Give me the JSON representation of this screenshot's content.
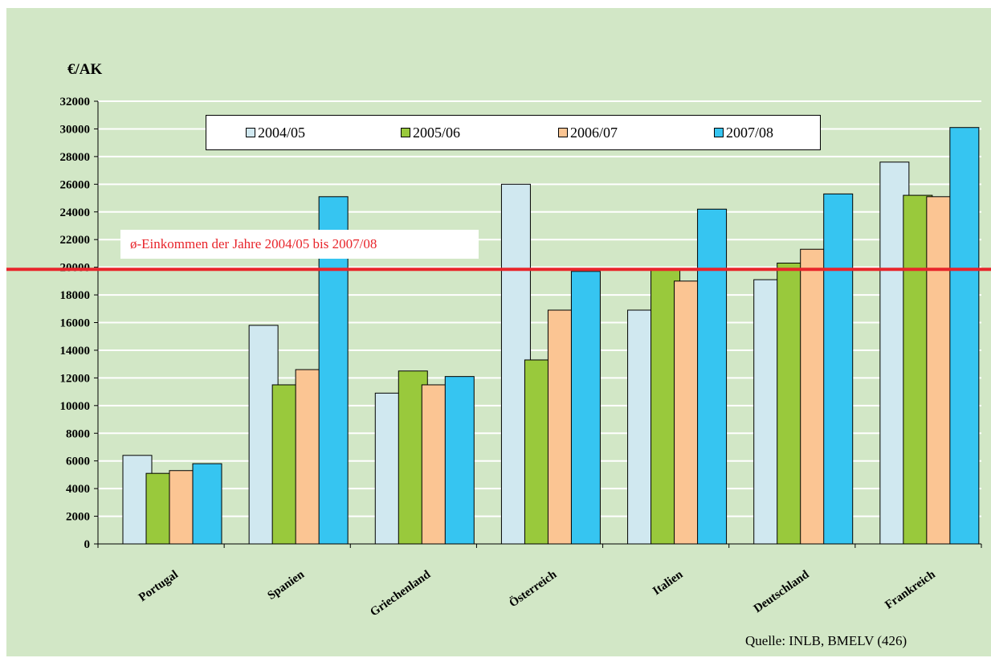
{
  "chart_data": {
    "type": "bar",
    "ylabel": "€/AK",
    "ylim": [
      0,
      32000
    ],
    "yticks": [
      0,
      2000,
      4000,
      6000,
      8000,
      10000,
      12000,
      14000,
      16000,
      18000,
      20000,
      22000,
      24000,
      26000,
      28000,
      30000,
      32000
    ],
    "grid": true,
    "legend_position": "top",
    "categories": [
      "Portugal",
      "Spanien",
      "Griechenland",
      "Österreich",
      "Italien",
      "Deutschland",
      "Frankreich"
    ],
    "series": [
      {
        "name": "2004/05",
        "color": "#d0e8f0",
        "values": [
          6400,
          15800,
          10900,
          26000,
          16900,
          19100,
          27600
        ]
      },
      {
        "name": "2005/06",
        "color": "#99c93c",
        "values": [
          5100,
          11500,
          12500,
          13300,
          19800,
          20300,
          25200
        ]
      },
      {
        "name": "2006/07",
        "color": "#fbc593",
        "values": [
          5300,
          12600,
          11500,
          16900,
          19000,
          21300,
          25100
        ]
      },
      {
        "name": "2007/08",
        "color": "#36c5f1",
        "values": [
          5800,
          25100,
          12100,
          19700,
          24200,
          25300,
          30100
        ]
      }
    ],
    "reference_line": {
      "value": 19850,
      "color": "#e8252b",
      "label": "ø-Einkommen der Jahre 2004/05 bis 2007/08"
    },
    "source_note": "Quelle: INLB, BMELV (426)"
  }
}
